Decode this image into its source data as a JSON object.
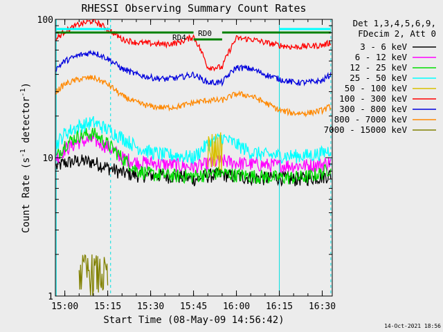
{
  "chart_data": {
    "type": "line",
    "title": "RHESSI Observing Summary Count Rates",
    "xlabel": "Start Time (08-May-09 14:56:42)",
    "ylabel": "Count Rate (s⁻¹ detector⁻¹)",
    "ylabel_main": "Count Rate (s",
    "ylabel_exp1": "-1",
    "ylabel_mid": " detector",
    "ylabel_exp2": "-1",
    "ylabel_end": ")",
    "yscale": "log",
    "ylim": [
      1,
      100
    ],
    "xlim": [
      "14:56:42",
      "16:33:30"
    ],
    "x_ticks": [
      "15:00",
      "15:15",
      "15:30",
      "15:45",
      "16:00",
      "16:15",
      "16:30"
    ],
    "y_ticks": [
      "1",
      "10",
      "100"
    ],
    "legend_header": [
      "Det 1,3,4,5,6,9,",
      "FDecim 2, Att 0"
    ],
    "legend_position": "right",
    "attenuator_labels": [
      "RD4",
      "RD0"
    ],
    "timestamp": "14-Oct-2021 18:56",
    "x": [
      "14:57",
      "15:00",
      "15:05",
      "15:10",
      "15:15",
      "15:20",
      "15:25",
      "15:30",
      "15:35",
      "15:40",
      "15:45",
      "15:50",
      "15:55",
      "16:00",
      "16:05",
      "16:10",
      "16:15",
      "16:20",
      "16:25",
      "16:30",
      "16:33"
    ],
    "series": [
      {
        "name": "3 - 6 keV",
        "color": "#000000",
        "values": [
          8.6,
          9.2,
          9.5,
          9.3,
          8.5,
          7.8,
          7.5,
          7.5,
          7.4,
          7.3,
          7.0,
          7.4,
          7.6,
          7.3,
          7.2,
          7.1,
          7.2,
          7.0,
          7.1,
          7.3,
          7.5
        ]
      },
      {
        "name": "6 - 12 keV",
        "color": "#ff00ff",
        "values": [
          10,
          11.5,
          13,
          13.5,
          12,
          10,
          9.3,
          9.2,
          9.0,
          8.8,
          8.6,
          9.0,
          9.5,
          9.2,
          9.0,
          8.9,
          8.8,
          8.8,
          8.8,
          9.0,
          9.3
        ]
      },
      {
        "name": "12 - 25 keV",
        "color": "#00dd00",
        "values": [
          10,
          12.5,
          14.5,
          15,
          12.5,
          10,
          8.2,
          7.6,
          7.5,
          7.4,
          7.4,
          7.6,
          7.8,
          7.5,
          7.4,
          7.3,
          7.2,
          7.2,
          7.3,
          7.8,
          8.5
        ]
      },
      {
        "name": "25 - 50 keV",
        "color": "#00ffff",
        "values": [
          12.5,
          15,
          17,
          18,
          16,
          14,
          12,
          11,
          10.5,
          10.4,
          10,
          12.5,
          14,
          12.5,
          11,
          10.5,
          10.4,
          10.3,
          10.4,
          10.8,
          11.5
        ]
      },
      {
        "name": "50 - 100 keV",
        "color": "#d8c000",
        "values": [
          null,
          null,
          null,
          null,
          null,
          null,
          null,
          null,
          null,
          null,
          null,
          11.5,
          12,
          null,
          null,
          null,
          null,
          null,
          null,
          null,
          null
        ]
      },
      {
        "name": "100 - 300 keV",
        "color": "#ff0000",
        "values": [
          72,
          82,
          92,
          98,
          85,
          72,
          68,
          67,
          66,
          68,
          75,
          45,
          45,
          73,
          72,
          68,
          65,
          63,
          64,
          65,
          68
        ]
      },
      {
        "name": "300 - 800 keV",
        "color": "#0000dd",
        "values": [
          44,
          50,
          55,
          58,
          52,
          44,
          40,
          38,
          37,
          38,
          40,
          35,
          35,
          45,
          44,
          40,
          37,
          35,
          35,
          36,
          40
        ]
      },
      {
        "name": "800 - 7000 keV",
        "color": "#ff8800",
        "values": [
          30,
          34,
          37,
          38,
          34,
          28,
          25,
          23.5,
          23,
          23.5,
          25,
          26,
          26,
          29,
          28,
          25,
          22,
          21,
          21,
          22,
          23.5
        ]
      },
      {
        "name": "7000 - 15000 keV",
        "color": "#808000",
        "values": [
          null,
          null,
          1.5,
          1.5,
          1.4,
          null,
          null,
          null,
          null,
          null,
          null,
          null,
          null,
          null,
          null,
          null,
          null,
          null,
          null,
          null,
          null
        ]
      }
    ]
  }
}
